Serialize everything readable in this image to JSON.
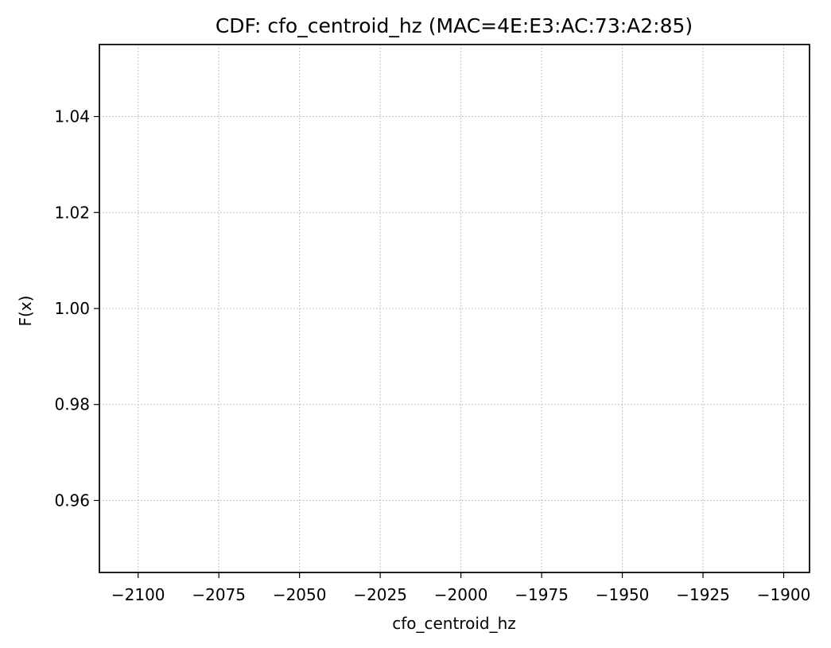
{
  "chart_data": {
    "type": "line",
    "title": "CDF: cfo_centroid_hz (MAC=4E:E3:AC:73:A2:85)",
    "xlabel": "cfo_centroid_hz",
    "ylabel": "F(x)",
    "xlim": [
      -2112,
      -1892
    ],
    "ylim": [
      0.945,
      1.055
    ],
    "xticks": [
      -2100,
      -2075,
      -2050,
      -2025,
      -2000,
      -1975,
      -1950,
      -1925,
      -1900
    ],
    "xtick_labels": [
      "−2100",
      "−2075",
      "−2050",
      "−2025",
      "−2000",
      "−1975",
      "−1950",
      "−1925",
      "−1900"
    ],
    "yticks": [
      0.96,
      0.98,
      1.0,
      1.02,
      1.04
    ],
    "ytick_labels": [
      "0.96",
      "0.98",
      "1.00",
      "1.02",
      "1.04"
    ],
    "grid": true,
    "series": []
  }
}
